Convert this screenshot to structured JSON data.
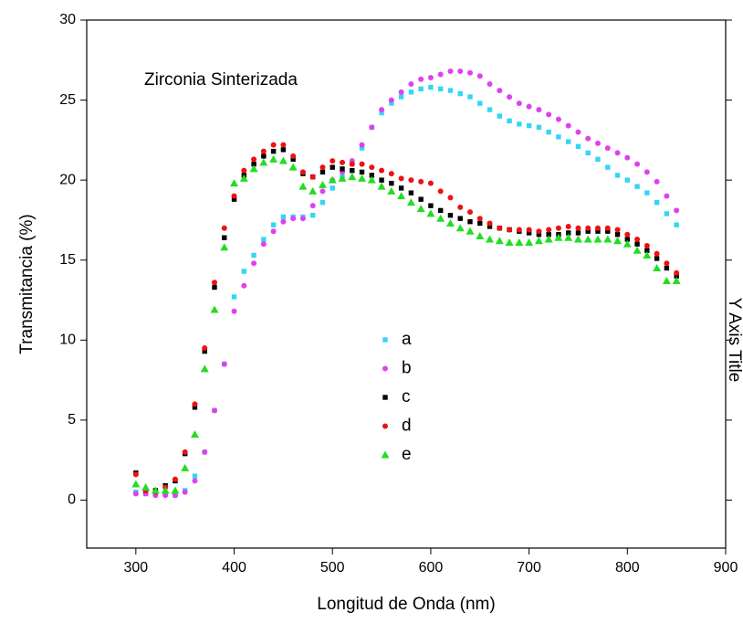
{
  "chart_data": {
    "type": "scatter",
    "annotation": "Zirconia Sinterizada",
    "x_label": "Longitud de Onda (nm)",
    "y_label": "Transmitancia (%)",
    "y2_label": "Y Axis Title",
    "xlim": [
      250,
      900
    ],
    "xticks": [
      300,
      400,
      500,
      600,
      700,
      800,
      900
    ],
    "ylim": [
      -3,
      30
    ],
    "yticks": [
      0,
      5,
      10,
      15,
      20,
      25,
      30
    ],
    "legend": "center",
    "x": [
      300,
      310,
      320,
      330,
      340,
      350,
      360,
      370,
      380,
      390,
      400,
      410,
      420,
      430,
      440,
      450,
      460,
      470,
      480,
      490,
      500,
      510,
      520,
      530,
      540,
      550,
      560,
      570,
      580,
      590,
      600,
      610,
      620,
      630,
      640,
      650,
      660,
      670,
      680,
      690,
      700,
      710,
      720,
      730,
      740,
      750,
      760,
      770,
      780,
      790,
      800,
      810,
      820,
      830,
      840,
      850
    ],
    "series": [
      {
        "name": "a",
        "color": "#33d6f5",
        "marker": "square",
        "values": [
          0.5,
          0.4,
          0.4,
          0.4,
          0.3,
          0.6,
          1.5,
          3.0,
          5.6,
          8.5,
          12.7,
          14.3,
          15.3,
          16.3,
          17.2,
          17.7,
          17.7,
          17.7,
          17.8,
          18.6,
          19.5,
          20.2,
          21.0,
          22.0,
          23.3,
          24.2,
          24.8,
          25.2,
          25.5,
          25.7,
          25.8,
          25.7,
          25.6,
          25.4,
          25.2,
          24.8,
          24.4,
          24.0,
          23.7,
          23.5,
          23.4,
          23.3,
          23.0,
          22.7,
          22.4,
          22.1,
          21.7,
          21.3,
          20.8,
          20.3,
          20.0,
          19.6,
          19.2,
          18.6,
          17.9,
          17.2
        ]
      },
      {
        "name": "b",
        "color": "#e040f0",
        "marker": "circle",
        "values": [
          0.4,
          0.4,
          0.3,
          0.3,
          0.3,
          0.5,
          1.2,
          3.0,
          5.6,
          8.5,
          11.8,
          13.4,
          14.8,
          16.0,
          16.8,
          17.4,
          17.6,
          17.6,
          18.4,
          19.3,
          20.0,
          20.5,
          21.2,
          22.2,
          23.3,
          24.4,
          25.0,
          25.5,
          26.0,
          26.3,
          26.4,
          26.6,
          26.8,
          26.8,
          26.7,
          26.5,
          26.0,
          25.6,
          25.2,
          24.8,
          24.6,
          24.4,
          24.1,
          23.8,
          23.4,
          23.0,
          22.6,
          22.3,
          22.0,
          21.7,
          21.4,
          21.0,
          20.5,
          19.9,
          19.0,
          18.1
        ]
      },
      {
        "name": "c",
        "color": "#000000",
        "marker": "square",
        "values": [
          1.7,
          0.6,
          0.6,
          0.9,
          1.2,
          2.9,
          5.8,
          9.3,
          13.3,
          16.4,
          18.8,
          20.3,
          21.0,
          21.5,
          21.8,
          21.9,
          21.3,
          20.4,
          20.2,
          20.5,
          20.8,
          20.7,
          20.6,
          20.5,
          20.3,
          20.0,
          19.8,
          19.5,
          19.2,
          18.8,
          18.4,
          18.1,
          17.8,
          17.6,
          17.4,
          17.3,
          17.1,
          17.0,
          16.9,
          16.8,
          16.7,
          16.6,
          16.6,
          16.6,
          16.7,
          16.7,
          16.8,
          16.8,
          16.8,
          16.6,
          16.3,
          16.0,
          15.6,
          15.1,
          14.5,
          14.0
        ]
      },
      {
        "name": "d",
        "color": "#ee1111",
        "marker": "circle",
        "values": [
          1.6,
          0.6,
          0.5,
          0.8,
          1.3,
          3.0,
          6.0,
          9.5,
          13.6,
          17.0,
          19.0,
          20.6,
          21.3,
          21.8,
          22.2,
          22.2,
          21.5,
          20.5,
          20.2,
          20.8,
          21.2,
          21.1,
          21.0,
          21.0,
          20.8,
          20.6,
          20.4,
          20.1,
          20.0,
          19.9,
          19.8,
          19.3,
          18.9,
          18.3,
          18.0,
          17.6,
          17.3,
          17.0,
          16.9,
          16.9,
          16.9,
          16.8,
          16.9,
          17.0,
          17.1,
          17.0,
          17.0,
          17.0,
          17.0,
          16.9,
          16.6,
          16.3,
          15.9,
          15.4,
          14.8,
          14.2
        ]
      },
      {
        "name": "e",
        "color": "#22dd22",
        "marker": "triangle",
        "values": [
          1.0,
          0.8,
          0.6,
          0.6,
          0.6,
          2.0,
          4.1,
          8.2,
          11.9,
          15.8,
          19.8,
          20.1,
          20.7,
          21.1,
          21.3,
          21.2,
          20.8,
          19.6,
          19.3,
          19.7,
          20.0,
          20.1,
          20.2,
          20.1,
          20.0,
          19.6,
          19.3,
          19.0,
          18.6,
          18.2,
          17.9,
          17.6,
          17.3,
          17.0,
          16.8,
          16.5,
          16.3,
          16.2,
          16.1,
          16.1,
          16.1,
          16.2,
          16.3,
          16.4,
          16.4,
          16.3,
          16.3,
          16.3,
          16.3,
          16.2,
          16.0,
          15.6,
          15.3,
          14.5,
          13.7,
          13.7
        ]
      }
    ]
  }
}
